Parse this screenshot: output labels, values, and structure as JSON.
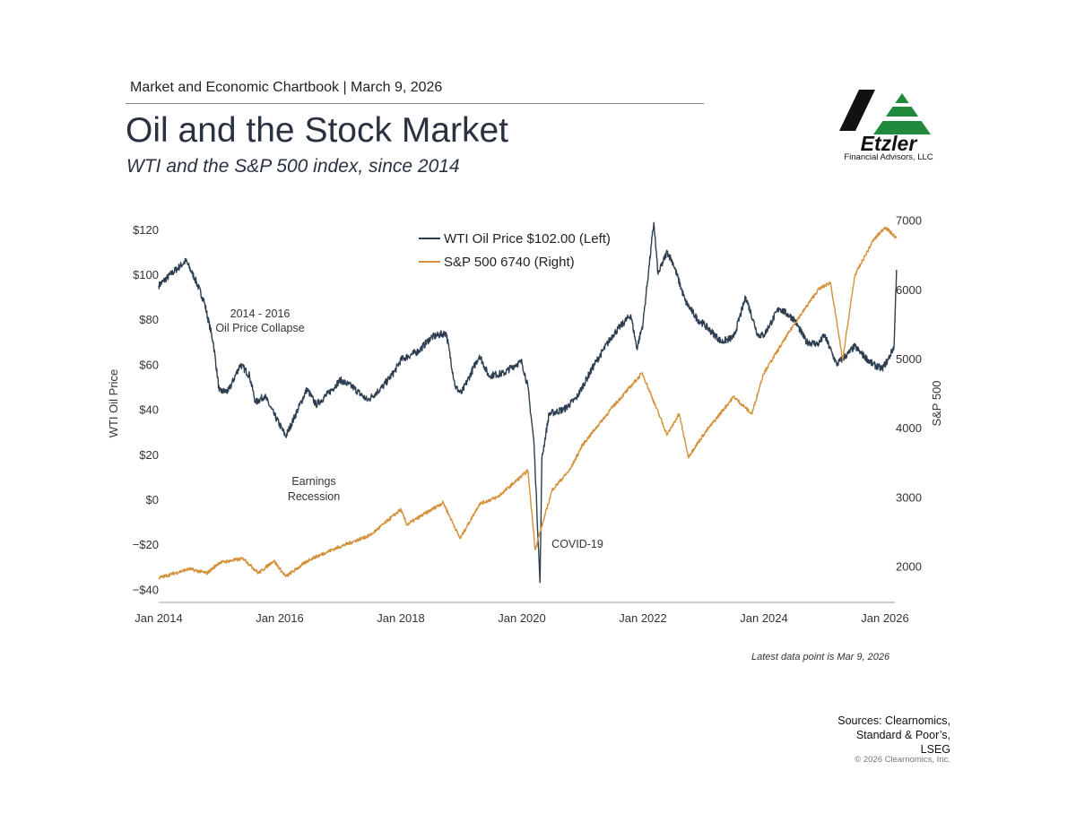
{
  "header": {
    "chartbook": "Market and Economic Chartbook | March 9, 2026",
    "title": "Oil and the Stock Market",
    "subtitle": "WTI and the S&P 500 index, since 2014"
  },
  "logo": {
    "name": "Etzler",
    "sub": "Financial Advisors, LLC",
    "colors": {
      "black": "#111111",
      "green": "#1f8a3c"
    }
  },
  "footer": {
    "latest": "Latest data point is Mar 9, 2026",
    "sources": [
      "Sources: Clearnomics,",
      "Standard & Poor’s,",
      "LSEG"
    ],
    "copyright": "© 2026 Clearnomics, Inc."
  },
  "chart_data": {
    "type": "line",
    "title": "Oil and the Stock Market",
    "xlabel": "",
    "ylabel_left": "WTI Oil Price",
    "ylabel_right": "S&P 500",
    "x_ticks": [
      {
        "label": "Jan 2014",
        "value": 2014
      },
      {
        "label": "Jan 2016",
        "value": 2016
      },
      {
        "label": "Jan 2018",
        "value": 2018
      },
      {
        "label": "Jan 2020",
        "value": 2020
      },
      {
        "label": "Jan 2022",
        "value": 2022
      },
      {
        "label": "Jan 2024",
        "value": 2024
      },
      {
        "label": "Jan 2026",
        "value": 2026
      }
    ],
    "xlim": [
      2014,
      2026.19
    ],
    "ylim_left": [
      -45,
      125
    ],
    "ylim_right": [
      1500,
      7050
    ],
    "left_ticks": [
      {
        "label": "$120",
        "value": 120
      },
      {
        "label": "$100",
        "value": 100
      },
      {
        "label": "$80",
        "value": 80
      },
      {
        "label": "$60",
        "value": 60
      },
      {
        "label": "$40",
        "value": 40
      },
      {
        "label": "$20",
        "value": 20
      },
      {
        "label": "$0",
        "value": 0
      },
      {
        "label": "−$20",
        "value": -20
      },
      {
        "label": "−$40",
        "value": -40
      }
    ],
    "right_ticks": [
      {
        "label": "7000",
        "value": 7000
      },
      {
        "label": "6000",
        "value": 6000
      },
      {
        "label": "5000",
        "value": 5000
      },
      {
        "label": "4000",
        "value": 4000
      },
      {
        "label": "3000",
        "value": 3000
      },
      {
        "label": "2000",
        "value": 2000
      }
    ],
    "legend_position": "top-center",
    "grid": false,
    "series": [
      {
        "name": "WTI Oil Price $102.00 (Left)",
        "axis": "left",
        "color": "#2c3e50",
        "x": [
          2014.0,
          2014.2,
          2014.45,
          2014.6,
          2014.75,
          2014.9,
          2015.0,
          2015.15,
          2015.35,
          2015.5,
          2015.6,
          2015.75,
          2015.9,
          2016.1,
          2016.3,
          2016.45,
          2016.6,
          2016.8,
          2017.0,
          2017.2,
          2017.45,
          2017.7,
          2017.9,
          2018.0,
          2018.3,
          2018.5,
          2018.75,
          2018.9,
          2019.0,
          2019.3,
          2019.45,
          2019.7,
          2019.9,
          2020.0,
          2020.1,
          2020.2,
          2020.3,
          2020.33,
          2020.45,
          2020.7,
          2020.9,
          2021.0,
          2021.2,
          2021.5,
          2021.8,
          2021.9,
          2022.0,
          2022.18,
          2022.25,
          2022.4,
          2022.5,
          2022.7,
          2022.9,
          2023.0,
          2023.3,
          2023.5,
          2023.7,
          2023.9,
          2024.0,
          2024.25,
          2024.5,
          2024.7,
          2024.9,
          2025.0,
          2025.2,
          2025.4,
          2025.5,
          2025.6,
          2025.8,
          2025.95,
          2026.05,
          2026.15,
          2026.19
        ],
        "values": [
          95,
          100,
          106,
          98,
          88,
          70,
          48,
          48,
          60,
          55,
          43,
          46,
          38,
          28,
          40,
          49,
          42,
          47,
          53,
          50,
          44,
          50,
          57,
          62,
          66,
          72,
          74,
          50,
          47,
          64,
          55,
          56,
          60,
          61,
          50,
          25,
          -37,
          18,
          38,
          40,
          45,
          50,
          60,
          73,
          82,
          67,
          78,
          123,
          100,
          110,
          105,
          88,
          80,
          78,
          70,
          72,
          90,
          73,
          73,
          85,
          80,
          70,
          69,
          73,
          60,
          65,
          68,
          65,
          60,
          58,
          62,
          68,
          102
        ]
      },
      {
        "name": "S&P 500 6740 (Right)",
        "axis": "right",
        "color": "#d4913a",
        "x": [
          2014.0,
          2014.5,
          2014.8,
          2015.0,
          2015.4,
          2015.65,
          2015.9,
          2016.1,
          2016.5,
          2016.9,
          2017.5,
          2018.0,
          2018.1,
          2018.7,
          2018.98,
          2019.3,
          2019.6,
          2020.1,
          2020.22,
          2020.5,
          2020.8,
          2021.0,
          2021.5,
          2021.99,
          2022.4,
          2022.6,
          2022.75,
          2023.0,
          2023.5,
          2023.8,
          2023.99,
          2024.5,
          2024.9,
          2025.1,
          2025.3,
          2025.5,
          2025.8,
          2026.0,
          2026.19
        ],
        "values": [
          1830,
          1960,
          1900,
          2050,
          2110,
          1900,
          2080,
          1850,
          2100,
          2250,
          2450,
          2820,
          2600,
          2920,
          2400,
          2900,
          3000,
          3380,
          2240,
          3100,
          3400,
          3750,
          4300,
          4790,
          3900,
          4200,
          3580,
          3900,
          4450,
          4200,
          4780,
          5500,
          6000,
          6100,
          4980,
          6200,
          6700,
          6900,
          6740
        ]
      }
    ],
    "annotations": [
      {
        "lines": [
          "2014 - 2016",
          "Oil Price Collapse"
        ]
      },
      {
        "lines": [
          "Earnings",
          "Recession"
        ]
      },
      {
        "lines": [
          "COVID-19"
        ]
      }
    ]
  }
}
